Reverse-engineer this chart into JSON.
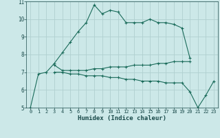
{
  "xlabel": "Humidex (Indice chaleur)",
  "bg_color": "#cce8e8",
  "grid_color": "#b0d0d0",
  "line_color": "#1a6b5a",
  "xlim": [
    -0.5,
    23.5
  ],
  "ylim": [
    5,
    11
  ],
  "line1_x": [
    0,
    1,
    2,
    3,
    4,
    5,
    6,
    7,
    8,
    9,
    10,
    11,
    12,
    13,
    14,
    15,
    16,
    17,
    18,
    19,
    20
  ],
  "line1_y": [
    5.0,
    6.9,
    7.0,
    7.5,
    8.1,
    8.7,
    9.3,
    9.8,
    10.8,
    10.3,
    10.5,
    10.4,
    9.8,
    9.8,
    9.8,
    10.0,
    9.8,
    9.8,
    9.7,
    9.5,
    7.8
  ],
  "line2_x": [
    3,
    4,
    5,
    6,
    7,
    8,
    9,
    10,
    11,
    12,
    13,
    14,
    15,
    16,
    17,
    18,
    19,
    20
  ],
  "line2_y": [
    7.4,
    7.1,
    7.1,
    7.1,
    7.1,
    7.2,
    7.2,
    7.3,
    7.3,
    7.3,
    7.4,
    7.4,
    7.4,
    7.5,
    7.5,
    7.6,
    7.6,
    7.6
  ],
  "line3_x": [
    3,
    4,
    5,
    6,
    7,
    8,
    9,
    10,
    11,
    12,
    13,
    14,
    15,
    16,
    17,
    18,
    19,
    20,
    21,
    22,
    23
  ],
  "line3_y": [
    7.0,
    7.0,
    6.9,
    6.9,
    6.8,
    6.8,
    6.8,
    6.7,
    6.7,
    6.6,
    6.6,
    6.5,
    6.5,
    6.5,
    6.4,
    6.4,
    6.4,
    5.9,
    5.0,
    5.7,
    6.5
  ],
  "xtick_labels": [
    "0",
    "1",
    "2",
    "3",
    "4",
    "5",
    "6",
    "7",
    "8",
    "9",
    "10",
    "11",
    "12",
    "13",
    "14",
    "15",
    "16",
    "17",
    "18",
    "19",
    "20",
    "21",
    "22",
    "23"
  ],
  "ytick_labels": [
    "5",
    "6",
    "7",
    "8",
    "9",
    "10",
    "11"
  ]
}
